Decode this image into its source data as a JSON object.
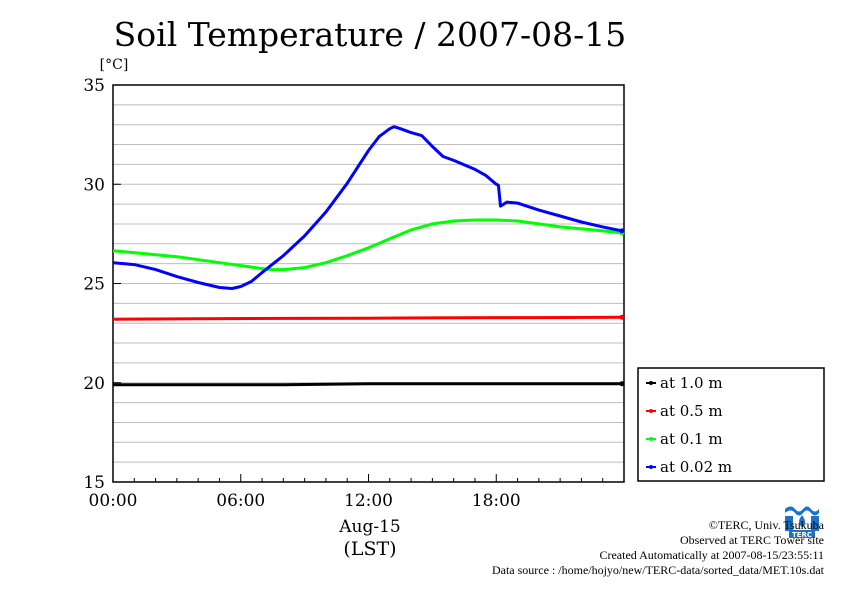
{
  "chart_data": {
    "type": "line",
    "title": "Soil Temperature / 2007-08-15",
    "ylabel": "[°C]",
    "xlabel": "Aug-15",
    "xlabel2": "(LST)",
    "xlim": [
      0,
      24
    ],
    "ylim": [
      15,
      35
    ],
    "x_ticks": [
      0,
      6,
      12,
      18
    ],
    "x_tick_labels": [
      "00:00",
      "06:00",
      "12:00",
      "18:00"
    ],
    "y_ticks": [
      15,
      20,
      25,
      30,
      35
    ],
    "y_tick_labels": [
      "15",
      "20",
      "25",
      "30",
      "35"
    ],
    "grid": true,
    "legend_position": "right, lower",
    "series": [
      {
        "name": "at 1.0 m",
        "color": "#000000",
        "points": [
          [
            0,
            19.9
          ],
          [
            4,
            19.9
          ],
          [
            8,
            19.9
          ],
          [
            12,
            19.95
          ],
          [
            16,
            19.95
          ],
          [
            20,
            19.95
          ],
          [
            23.9,
            19.95
          ]
        ]
      },
      {
        "name": "at 0.5 m",
        "color": "#ff0000",
        "points": [
          [
            0,
            23.2
          ],
          [
            4,
            23.22
          ],
          [
            8,
            23.24
          ],
          [
            12,
            23.25
          ],
          [
            16,
            23.27
          ],
          [
            20,
            23.28
          ],
          [
            23.9,
            23.3
          ]
        ]
      },
      {
        "name": "at 0.1 m",
        "color": "#00ff00",
        "points": [
          [
            0,
            26.65
          ],
          [
            1,
            26.55
          ],
          [
            2,
            26.45
          ],
          [
            3,
            26.35
          ],
          [
            4,
            26.2
          ],
          [
            5,
            26.05
          ],
          [
            6,
            25.9
          ],
          [
            7,
            25.75
          ],
          [
            7.5,
            25.7
          ],
          [
            8,
            25.7
          ],
          [
            9,
            25.8
          ],
          [
            10,
            26.05
          ],
          [
            11,
            26.4
          ],
          [
            12,
            26.8
          ],
          [
            13,
            27.25
          ],
          [
            14,
            27.7
          ],
          [
            15,
            28.0
          ],
          [
            16,
            28.15
          ],
          [
            17,
            28.2
          ],
          [
            18,
            28.2
          ],
          [
            19,
            28.15
          ],
          [
            20,
            28.0
          ],
          [
            21,
            27.85
          ],
          [
            22,
            27.75
          ],
          [
            23,
            27.65
          ],
          [
            23.9,
            27.55
          ]
        ]
      },
      {
        "name": "at 0.02 m",
        "color": "#0000ff",
        "points": [
          [
            0,
            26.05
          ],
          [
            1,
            25.95
          ],
          [
            2,
            25.7
          ],
          [
            3,
            25.35
          ],
          [
            4,
            25.05
          ],
          [
            5,
            24.8
          ],
          [
            5.6,
            24.75
          ],
          [
            6,
            24.85
          ],
          [
            6.5,
            25.1
          ],
          [
            7,
            25.55
          ],
          [
            8,
            26.4
          ],
          [
            9,
            27.4
          ],
          [
            10,
            28.6
          ],
          [
            11,
            30.05
          ],
          [
            12,
            31.7
          ],
          [
            12.5,
            32.4
          ],
          [
            13,
            32.8
          ],
          [
            13.2,
            32.9
          ],
          [
            13.5,
            32.8
          ],
          [
            14,
            32.6
          ],
          [
            14.5,
            32.45
          ],
          [
            15,
            31.9
          ],
          [
            15.5,
            31.4
          ],
          [
            16,
            31.2
          ],
          [
            17,
            30.75
          ],
          [
            17.5,
            30.45
          ],
          [
            18,
            30.0
          ],
          [
            18.1,
            29.95
          ],
          [
            18.2,
            28.9
          ],
          [
            18.5,
            29.1
          ],
          [
            19,
            29.05
          ],
          [
            20,
            28.7
          ],
          [
            21,
            28.4
          ],
          [
            22,
            28.1
          ],
          [
            23,
            27.85
          ],
          [
            23.9,
            27.65
          ]
        ]
      }
    ]
  },
  "credits": {
    "copyright": "©TERC, Univ. Tsukuba",
    "site": "Observed at TERC Tower site",
    "created": "Created Automatically at 2007-08-15/23:55:11",
    "source": "Data source : /home/hojyo/new/TERC-data/sorted_data/MET.10s.dat"
  },
  "logo": {
    "name": "terc-logo-icon",
    "text": "TERC",
    "color": "#1a73c8"
  }
}
